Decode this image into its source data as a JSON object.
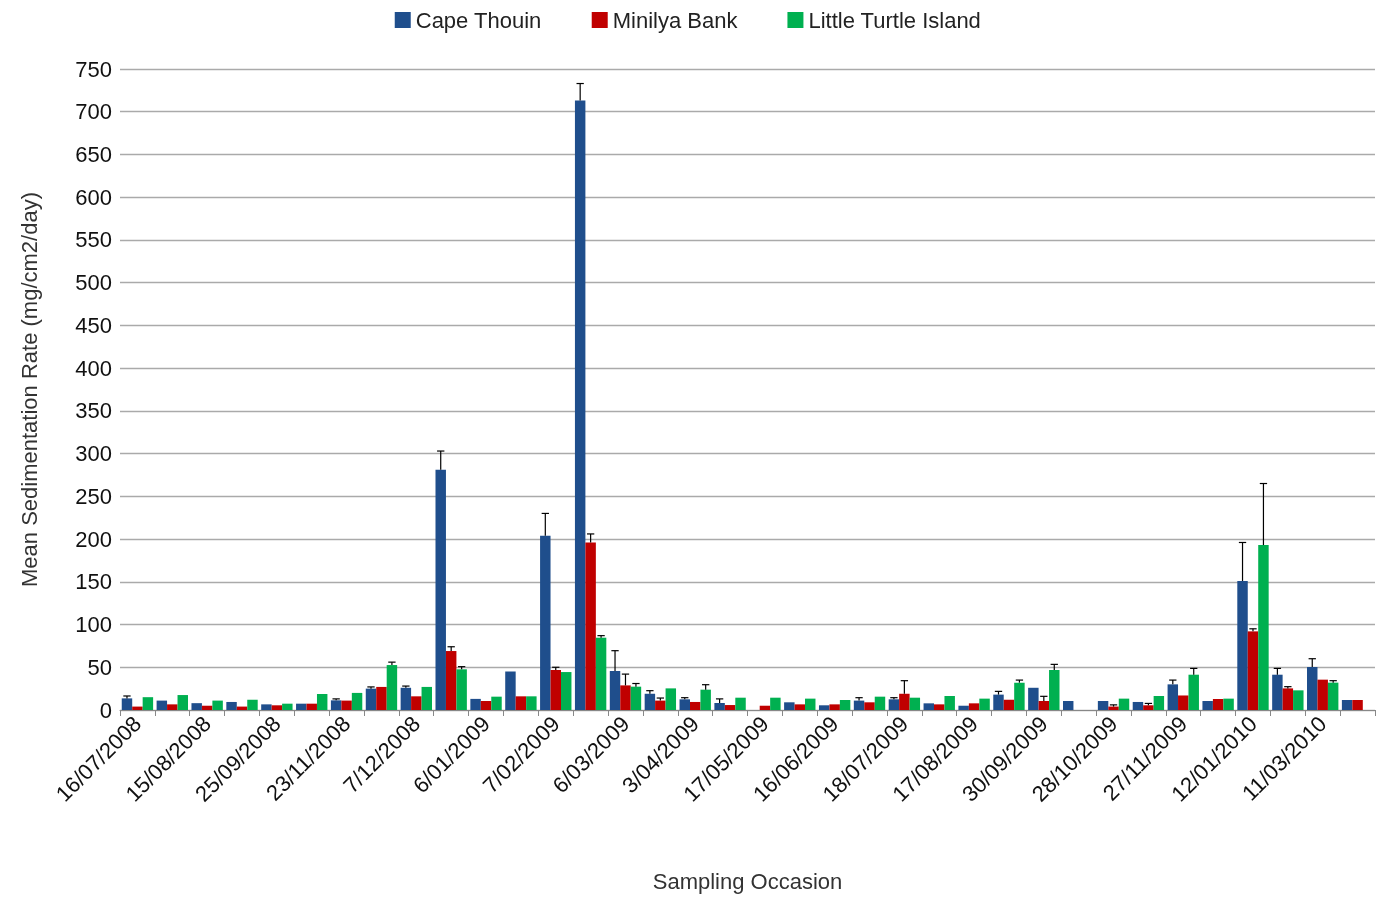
{
  "chart_data": {
    "type": "bar",
    "xlabel": "Sampling Occasion",
    "ylabel": "Mean Sedimentation Rate (mg/cm2/day)",
    "categories": [
      "16/07/2008",
      null,
      "15/08/2008",
      null,
      "25/09/2008",
      null,
      "23/11/2008",
      null,
      "7/12/2008",
      null,
      "6/01/2009",
      null,
      "7/02/2009",
      null,
      "6/03/2009",
      null,
      "3/04/2009",
      null,
      "17/05/2009",
      null,
      "16/06/2009",
      null,
      "18/07/2009",
      null,
      "17/08/2009",
      null,
      "30/09/2009",
      null,
      "28/10/2009",
      null,
      "27/11/2009",
      null,
      "12/01/2010",
      null,
      "11/03/2010",
      null
    ],
    "series": [
      {
        "name": "Cape Thouin",
        "color": "#1f4e8c",
        "values": [
          13.6,
          11,
          8,
          9.4,
          6.6,
          7.4,
          11.3,
          25,
          26,
          281,
          13,
          45,
          204,
          713,
          45.6,
          19,
          12.5,
          8.2,
          null,
          9,
          5.5,
          11,
          12.5,
          7.8,
          5,
          18,
          26,
          10.5,
          10.5,
          9.4,
          30,
          10.5,
          151,
          41.3,
          50.3,
          11.7
        ],
        "errors": [
          [
            13.6,
            16.4
          ],
          null,
          null,
          null,
          null,
          null,
          [
            11.3,
            13
          ],
          [
            25,
            27
          ],
          [
            26,
            28
          ],
          [
            281,
            303
          ],
          null,
          null,
          [
            204,
            230
          ],
          [
            713,
            733
          ],
          [
            45.6,
            69.4
          ],
          [
            19,
            22.6
          ],
          [
            12.5,
            14.4
          ],
          [
            8.2,
            13
          ],
          null,
          null,
          null,
          [
            11,
            14.4
          ],
          [
            12.5,
            14.4
          ],
          null,
          null,
          [
            18,
            21.8
          ],
          null,
          null,
          null,
          null,
          [
            30,
            35
          ],
          null,
          [
            151,
            196
          ],
          [
            41.3,
            48.7
          ],
          [
            50.3,
            60
          ],
          null
        ]
      },
      {
        "name": "Minilya Bank",
        "color": "#c00000",
        "values": [
          4,
          6.6,
          5,
          4,
          5.5,
          7.4,
          11,
          27,
          16,
          69,
          10.5,
          16,
          46.8,
          196,
          28.8,
          11,
          9.4,
          5.8,
          5,
          6.6,
          6.6,
          9,
          19,
          6.6,
          7.8,
          12,
          10.5,
          null,
          4,
          5.5,
          17,
          12.9,
          92,
          25.3,
          35.5,
          11.7
        ],
        "errors": [
          null,
          null,
          null,
          null,
          null,
          null,
          null,
          null,
          null,
          [
            69,
            74
          ],
          null,
          null,
          [
            46.8,
            50
          ],
          [
            196,
            206
          ],
          [
            28.8,
            42
          ],
          [
            11,
            14
          ],
          null,
          null,
          null,
          null,
          null,
          null,
          [
            19,
            34.3
          ],
          null,
          null,
          null,
          [
            10.5,
            16
          ],
          null,
          [
            4,
            6
          ],
          [
            5.5,
            7.7
          ],
          null,
          null,
          [
            92,
            95
          ],
          [
            25.3,
            27.3
          ],
          null,
          null
        ]
      },
      {
        "name": "Little Turtle Island",
        "color": "#00b050",
        "values": [
          15,
          17.5,
          11,
          12,
          7.4,
          18.7,
          20,
          52.6,
          27,
          47.6,
          15.6,
          16,
          44.4,
          84.6,
          27.3,
          25.3,
          23.8,
          14.4,
          14.4,
          13.3,
          11.7,
          15.6,
          14.4,
          16.4,
          13.3,
          32,
          46.8,
          null,
          13.3,
          16.4,
          41.3,
          13.3,
          193,
          23,
          32,
          null
        ],
        "errors": [
          null,
          null,
          null,
          null,
          null,
          null,
          null,
          [
            52.6,
            56
          ],
          null,
          [
            47.6,
            50.7
          ],
          null,
          null,
          null,
          [
            84.6,
            87
          ],
          [
            27.3,
            31
          ],
          null,
          [
            23.8,
            29.6
          ],
          null,
          null,
          null,
          null,
          null,
          null,
          null,
          null,
          [
            32,
            35
          ],
          [
            46.8,
            53.4
          ],
          null,
          null,
          null,
          [
            41.3,
            48.7
          ],
          null,
          [
            193,
            265
          ],
          null,
          [
            32,
            34.3
          ],
          null
        ]
      }
    ],
    "ylim": [
      0,
      750
    ],
    "yticks": [
      0,
      50,
      100,
      150,
      200,
      250,
      300,
      350,
      400,
      450,
      500,
      550,
      600,
      650,
      700,
      750
    ],
    "grid": "y",
    "legend": "top"
  }
}
